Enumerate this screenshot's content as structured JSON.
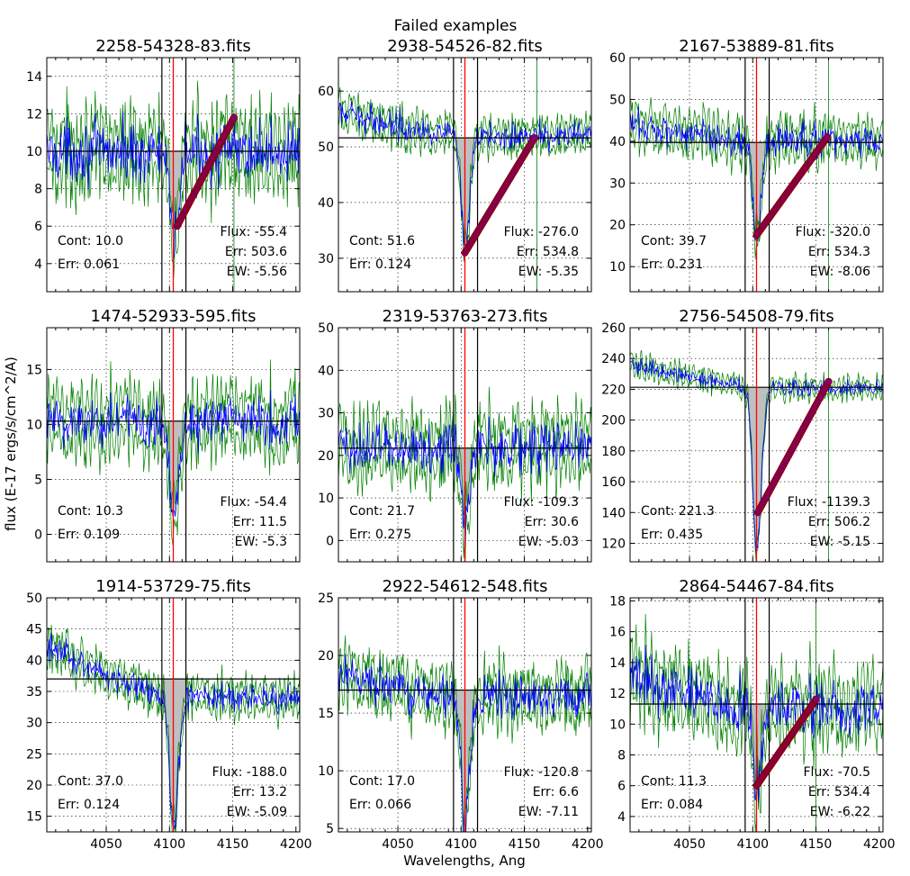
{
  "figure": {
    "suptitle": "Failed examples",
    "xlabel": "Wavelengths, Ang",
    "ylabel": "flux (E-17 ergs/s/cm^2/A)"
  },
  "colors": {
    "spectrum": "#0000ff",
    "error_band": "#008000",
    "continuum": "#000000",
    "line_center": "#ff0000",
    "fill": "#bfbfbf",
    "fit_points_edge": "#8b0000",
    "fit_points_face": "#800080"
  },
  "chart_data": [
    {
      "type": "line",
      "title": "2258-54328-83.fits",
      "xlim": [
        4003,
        4203
      ],
      "ylim": [
        2.5,
        15
      ],
      "yticks": [
        4,
        6,
        8,
        10,
        12,
        14
      ],
      "xticks": [
        4050,
        4100,
        4150
      ],
      "cont": 10.0,
      "noise": 1.4,
      "left_level": 10.0,
      "right_level": 10.0,
      "window": [
        4094,
        4113
      ],
      "line_center": 4103,
      "dip_min": 5.0,
      "green_spike_x": 4151,
      "fit_line": {
        "x": [
          4106,
          4151
        ],
        "y": [
          6.0,
          11.8
        ]
      },
      "annotations": {
        "cont": "Cont: 10.0",
        "err": "Err: 0.061",
        "flux": "Flux: -55.4",
        "flux_err": "Err: 503.6",
        "ew": "EW: -5.56"
      }
    },
    {
      "type": "line",
      "title": "2938-54526-82.fits",
      "xlim": [
        4003,
        4203
      ],
      "ylim": [
        24,
        66
      ],
      "yticks": [
        30,
        40,
        50,
        60
      ],
      "xticks": [
        4050,
        4100,
        4150
      ],
      "cont": 51.6,
      "noise": 2.2,
      "left_level": 56,
      "right_level": 52,
      "window": [
        4094,
        4113
      ],
      "line_center": 4103,
      "dip_min": 31,
      "green_spike_x": 4160,
      "fit_line": {
        "x": [
          4103,
          4158
        ],
        "y": [
          31.0,
          51.6
        ]
      },
      "annotations": {
        "cont": "Cont: 51.6",
        "err": "Err: 0.124",
        "flux": "Flux: -276.0",
        "flux_err": "Err: 534.8",
        "ew": "EW: -5.35"
      }
    },
    {
      "type": "line",
      "title": "2167-53889-81.fits",
      "xlim": [
        4003,
        4203
      ],
      "ylim": [
        4,
        60
      ],
      "yticks": [
        10,
        20,
        30,
        40,
        50,
        60
      ],
      "xticks": [
        4050,
        4100,
        4150
      ],
      "cont": 39.7,
      "noise": 3.5,
      "left_level": 44,
      "right_level": 40,
      "window": [
        4094,
        4113
      ],
      "line_center": 4103,
      "dip_min": 17,
      "green_spike_x": 4160,
      "fit_line": {
        "x": [
          4103,
          4159
        ],
        "y": [
          17.5,
          41.0
        ]
      },
      "annotations": {
        "cont": "Cont: 39.7",
        "err": "Err: 0.231",
        "flux": "Flux: -320.0",
        "flux_err": "Err: 534.3",
        "ew": "EW: -8.06"
      }
    },
    {
      "type": "line",
      "title": "1474-52933-595.fits",
      "xlim": [
        4003,
        4203
      ],
      "ylim": [
        -2.5,
        18.8
      ],
      "yticks": [
        0,
        5,
        10,
        15
      ],
      "xticks": [
        4050,
        4100,
        4150
      ],
      "cont": 10.3,
      "noise": 2.2,
      "left_level": 10.3,
      "right_level": 10.3,
      "window": [
        4094,
        4113
      ],
      "line_center": 4103,
      "dip_min": 2,
      "green_spike_x": null,
      "fit_line": null,
      "annotations": {
        "cont": "Cont: 10.3",
        "err": "Err: 0.109",
        "flux": "Flux: -54.4",
        "flux_err": "Err: 11.5",
        "ew": "EW: -5.3"
      }
    },
    {
      "type": "line",
      "title": "2319-53763-273.fits",
      "xlim": [
        4003,
        4203
      ],
      "ylim": [
        -5,
        50
      ],
      "yticks": [
        0,
        10,
        20,
        30,
        40,
        50
      ],
      "xticks": [
        4050,
        4100,
        4150
      ],
      "cont": 21.7,
      "noise": 5.5,
      "left_level": 22,
      "right_level": 22,
      "window": [
        4094,
        4113
      ],
      "line_center": 4103,
      "dip_min": 5,
      "green_spike_x": null,
      "fit_line": null,
      "annotations": {
        "cont": "Cont: 21.7",
        "err": "Err: 0.275",
        "flux": "Flux: -109.3",
        "flux_err": "Err: 30.6",
        "ew": "EW: -5.03"
      }
    },
    {
      "type": "line",
      "title": "2756-54508-79.fits",
      "xlim": [
        4003,
        4203
      ],
      "ylim": [
        108,
        260
      ],
      "yticks": [
        120,
        140,
        160,
        180,
        200,
        220,
        240,
        260
      ],
      "xticks": [
        4050,
        4100,
        4150
      ],
      "cont": 221.3,
      "noise": 4.5,
      "left_level": 236,
      "right_level": 221,
      "window": [
        4094,
        4113
      ],
      "line_center": 4103,
      "dip_min": 115,
      "green_spike_x": 4160,
      "fit_line": {
        "x": [
          4104,
          4160
        ],
        "y": [
          140,
          225
        ]
      },
      "annotations": {
        "cont": "Cont: 221.3",
        "err": "Err: 0.435",
        "flux": "Flux: -1139.3",
        "flux_err": "Err: 506.2",
        "ew": "EW: -5.15"
      }
    },
    {
      "type": "line",
      "title": "1914-53729-75.fits",
      "xlim": [
        4003,
        4203
      ],
      "ylim": [
        12.5,
        50
      ],
      "yticks": [
        15,
        20,
        25,
        30,
        35,
        40,
        45,
        50
      ],
      "xticks": [
        4050,
        4100,
        4150
      ],
      "cont": 37.0,
      "noise": 2.0,
      "left_level": 42,
      "right_level": 34,
      "window": [
        4094,
        4113
      ],
      "line_center": 4103,
      "dip_min": 16,
      "green_spike_x": null,
      "fit_line": null,
      "annotations": {
        "cont": "Cont: 37.0",
        "err": "Err: 0.124",
        "flux": "Flux: -188.0",
        "flux_err": "Err: 13.2",
        "ew": "EW: -5.09"
      }
    },
    {
      "type": "line",
      "title": "2922-54612-548.fits",
      "xlim": [
        4003,
        4203
      ],
      "ylim": [
        4.7,
        25
      ],
      "yticks": [
        5,
        10,
        15,
        20,
        25
      ],
      "xticks": [
        4050,
        4100,
        4150
      ],
      "cont": 17.0,
      "noise": 1.6,
      "left_level": 18,
      "right_level": 16.5,
      "window": [
        4094,
        4113
      ],
      "line_center": 4103,
      "dip_min": 6,
      "green_spike_x": null,
      "fit_line": null,
      "annotations": {
        "cont": "Cont: 17.0",
        "err": "Err: 0.066",
        "flux": "Flux: -120.8",
        "flux_err": "Err: 6.6",
        "ew": "EW: -7.11"
      }
    },
    {
      "type": "line",
      "title": "2864-54467-84.fits",
      "xlim": [
        4003,
        4203
      ],
      "ylim": [
        3,
        18.2
      ],
      "yticks": [
        4,
        6,
        8,
        10,
        12,
        14,
        16,
        18
      ],
      "xticks": [
        4050,
        4100,
        4150
      ],
      "cont": 11.3,
      "noise": 1.6,
      "left_level": 13,
      "right_level": 11,
      "window": [
        4094,
        4113
      ],
      "line_center": 4103,
      "dip_min": 6,
      "green_spike_x": 4150,
      "fit_line": {
        "x": [
          4103,
          4150
        ],
        "y": [
          6.0,
          11.6
        ]
      },
      "annotations": {
        "cont": "Cont: 11.3",
        "err": "Err: 0.084",
        "flux": "Flux: -70.5",
        "flux_err": "Err: 534.4",
        "ew": "EW: -6.22"
      }
    }
  ]
}
